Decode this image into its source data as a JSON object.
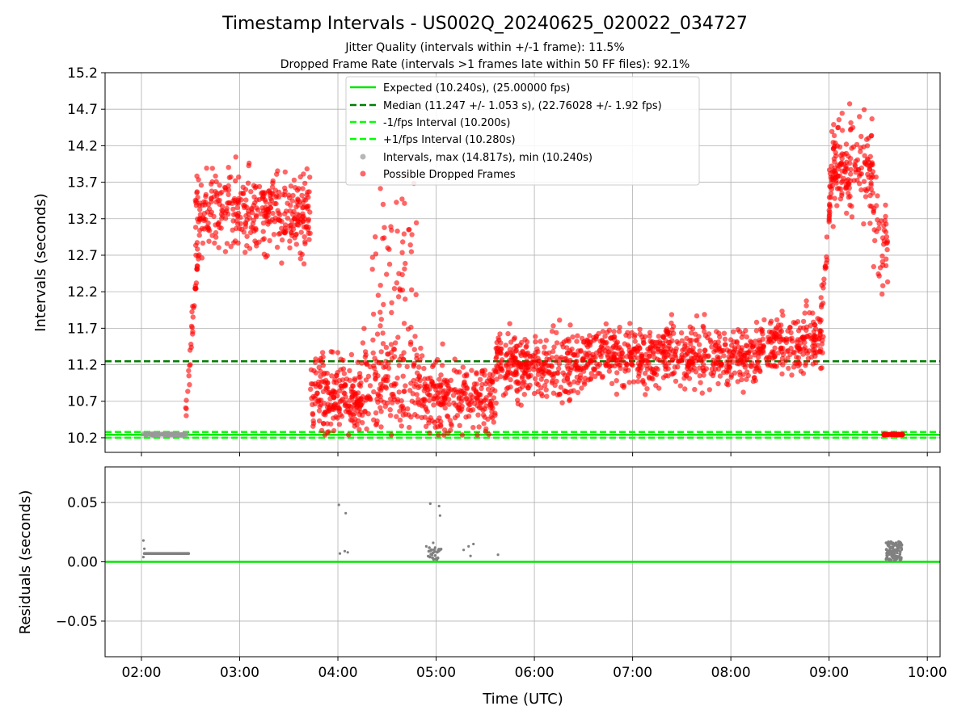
{
  "chart_data": [
    {
      "type": "scatter",
      "title": "Timestamp Intervals - US002Q_20240625_020022_034727",
      "subtitle_lines": [
        "Jitter Quality (intervals within +/-1 frame): 11.5%",
        "Dropped Frame Rate (intervals >1 frames late within 50 FF files): 92.1%"
      ],
      "xlabel": "",
      "ylabel": "Intervals (seconds)",
      "xlim_hours": [
        1.63,
        10.13
      ],
      "ylim": [
        10.0,
        15.2
      ],
      "y_ticks": [
        10.2,
        10.7,
        11.2,
        11.7,
        12.2,
        12.7,
        13.2,
        13.7,
        14.2,
        14.7,
        15.2
      ],
      "grid": true,
      "legend_position": "top-center",
      "reference_lines": [
        {
          "label": "Expected (10.240s), (25.00000 fps)",
          "y": 10.24,
          "color": "#00e600",
          "style": "solid"
        },
        {
          "label": "Median (11.247 +/- 1.053 s), (22.76028 +/- 1.92 fps)",
          "y": 11.247,
          "color": "#007f00",
          "style": "dashed"
        },
        {
          "label": "-1/fps Interval (10.200s)",
          "y": 10.2,
          "color": "#00ff00",
          "style": "dashed"
        },
        {
          "label": "+1/fps Interval (10.280s)",
          "y": 10.28,
          "color": "#00ff00",
          "style": "dashed"
        }
      ],
      "series": [
        {
          "label": "Intervals, max (14.817s), min (10.240s)",
          "color": "#999999"
        },
        {
          "label": "Possible Dropped Frames",
          "color": "#ff0000"
        }
      ],
      "segments": [
        {
          "x0": 2.0,
          "x1": 2.46,
          "mean": 10.245,
          "spread": 0.005,
          "n": 60,
          "series": 0
        },
        {
          "x0": 2.45,
          "x1": 2.6,
          "ramp_from": 10.5,
          "ramp_to": 13.2,
          "n": 40,
          "series": 1
        },
        {
          "x0": 2.55,
          "x1": 3.72,
          "mean": 13.3,
          "spread": 0.28,
          "n": 380,
          "series": 1
        },
        {
          "x0": 3.72,
          "x1": 4.25,
          "mean": 10.75,
          "spread": 0.25,
          "n": 220,
          "series": 1
        },
        {
          "x0": 4.25,
          "x1": 4.85,
          "mean": 10.95,
          "spread": 0.3,
          "n": 160,
          "series": 1
        },
        {
          "x0": 4.35,
          "x1": 4.8,
          "mean": 12.6,
          "spread": 0.7,
          "n": 60,
          "series": 1
        },
        {
          "x0": 4.85,
          "x1": 5.6,
          "mean": 10.75,
          "spread": 0.25,
          "n": 250,
          "series": 1
        },
        {
          "x0": 5.6,
          "x1": 6.5,
          "mean": 11.2,
          "spread": 0.22,
          "n": 320,
          "series": 1
        },
        {
          "x0": 6.5,
          "x1": 8.3,
          "mean": 11.32,
          "spread": 0.2,
          "n": 600,
          "series": 1
        },
        {
          "x0": 8.3,
          "x1": 8.95,
          "mean": 11.5,
          "spread": 0.2,
          "n": 200,
          "series": 1
        },
        {
          "x0": 8.9,
          "x1": 9.05,
          "ramp_from": 11.6,
          "ramp_to": 14.0,
          "n": 40,
          "series": 1
        },
        {
          "x0": 9.0,
          "x1": 9.45,
          "mean": 13.9,
          "spread": 0.35,
          "n": 170,
          "series": 1
        },
        {
          "x0": 9.45,
          "x1": 9.6,
          "mean": 12.9,
          "spread": 0.35,
          "n": 40,
          "series": 1
        },
        {
          "x0": 9.55,
          "x1": 9.75,
          "mean": 10.245,
          "spread": 0.003,
          "n": 50,
          "series": 1
        }
      ]
    },
    {
      "type": "scatter",
      "xlabel": "Time (UTC)",
      "ylabel": "Residuals (seconds)",
      "ylim": [
        -0.08,
        0.08
      ],
      "y_ticks": [
        0.05,
        0.0,
        -0.05
      ],
      "y_tick_labels": [
        "0.05",
        "0.00",
        "−0.05"
      ],
      "x_ticks_hours": [
        2,
        3,
        4,
        5,
        6,
        7,
        8,
        9,
        10
      ],
      "x_tick_labels": [
        "02:00",
        "03:00",
        "04:00",
        "05:00",
        "06:00",
        "07:00",
        "08:00",
        "09:00",
        "10:00"
      ],
      "grid": true,
      "zero_line_color": "#00e600",
      "points_color": "#808080",
      "points": [
        {
          "x": 2.02,
          "y": 0.018
        },
        {
          "x": 2.02,
          "y": 0.004
        },
        {
          "x": 2.03,
          "y": 0.011
        },
        {
          "x": 4.01,
          "y": 0.048
        },
        {
          "x": 4.08,
          "y": 0.041
        },
        {
          "x": 4.02,
          "y": 0.007
        },
        {
          "x": 4.07,
          "y": 0.009
        },
        {
          "x": 4.1,
          "y": 0.008
        },
        {
          "x": 4.9,
          "y": 0.013
        },
        {
          "x": 4.94,
          "y": 0.049
        },
        {
          "x": 5.03,
          "y": 0.047
        },
        {
          "x": 5.04,
          "y": 0.039
        },
        {
          "x": 4.97,
          "y": 0.016
        },
        {
          "x": 4.99,
          "y": 0.012
        },
        {
          "x": 5.03,
          "y": 0.009
        },
        {
          "x": 5.28,
          "y": 0.01
        },
        {
          "x": 5.33,
          "y": 0.013
        },
        {
          "x": 5.38,
          "y": 0.015
        },
        {
          "x": 5.35,
          "y": 0.005
        },
        {
          "x": 5.63,
          "y": 0.006
        }
      ],
      "bands": [
        {
          "x0": 2.03,
          "x1": 2.48,
          "y": 0.007,
          "n": 45
        },
        {
          "x0": 4.92,
          "x1": 5.05,
          "ylo": 0.002,
          "yhi": 0.012,
          "n": 25
        },
        {
          "x0": 9.58,
          "x1": 9.74,
          "ylo": 0.001,
          "yhi": 0.017,
          "n": 120
        }
      ]
    }
  ]
}
